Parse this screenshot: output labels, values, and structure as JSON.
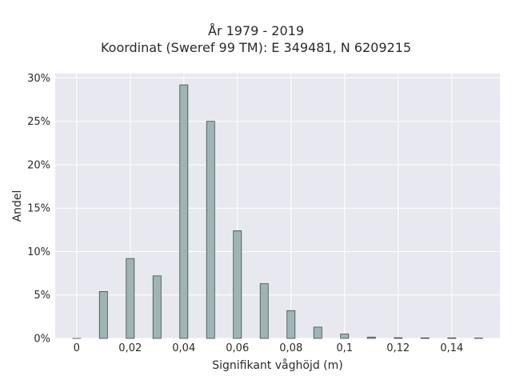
{
  "chart_data": {
    "type": "bar",
    "title": "År 1979 - 2019",
    "subtitle": "Koordinat (Sweref 99 TM): E 349481, N 6209215",
    "xlabel": "Signifikant våghöjd (m)",
    "ylabel": "Andel",
    "xlim": [
      -0.008,
      0.158
    ],
    "ylim": [
      0,
      0.305
    ],
    "x_ticks": [
      {
        "value": 0,
        "label": "0"
      },
      {
        "value": 0.02,
        "label": "0,02"
      },
      {
        "value": 0.04,
        "label": "0,04"
      },
      {
        "value": 0.06,
        "label": "0,06"
      },
      {
        "value": 0.08,
        "label": "0,08"
      },
      {
        "value": 0.1,
        "label": "0,1"
      },
      {
        "value": 0.12,
        "label": "0,12"
      },
      {
        "value": 0.14,
        "label": "0,14"
      }
    ],
    "y_ticks": [
      {
        "value": 0,
        "label": "0%"
      },
      {
        "value": 0.05,
        "label": "5%"
      },
      {
        "value": 0.1,
        "label": "10%"
      },
      {
        "value": 0.15,
        "label": "15%"
      },
      {
        "value": 0.2,
        "label": "20%"
      },
      {
        "value": 0.25,
        "label": "25%"
      },
      {
        "value": 0.3,
        "label": "30%"
      }
    ],
    "bar_width": 0.003,
    "x": [
      0.0,
      0.01,
      0.02,
      0.03,
      0.04,
      0.05,
      0.06,
      0.07,
      0.08,
      0.09,
      0.1,
      0.11,
      0.12,
      0.13,
      0.14,
      0.15
    ],
    "values": [
      0.0,
      0.054,
      0.092,
      0.072,
      0.292,
      0.25,
      0.124,
      0.063,
      0.032,
      0.013,
      0.005,
      0.0015,
      0.0008,
      0.0006,
      0.0006,
      0.0004
    ],
    "grid": true,
    "colors": {
      "bar_fill": "#9fb5b5",
      "bar_stroke": "#3e4a4a",
      "plot_bg": "#e8e8f0",
      "grid": "#ffffff"
    }
  }
}
